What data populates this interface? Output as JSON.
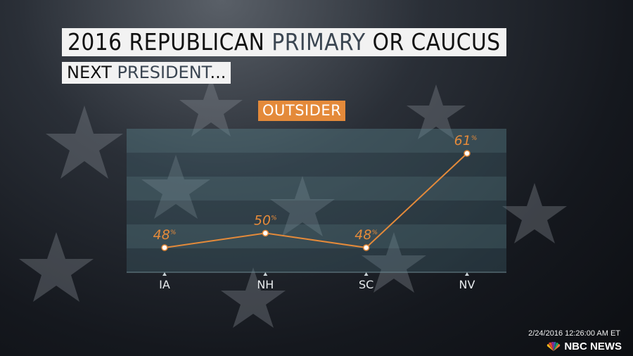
{
  "header": {
    "title_prefix": "2016 REPUBLICAN ",
    "title_highlight": "PRIMARY",
    "title_suffix": " OR CAUCUS",
    "subtitle_prefix": "NEXT ",
    "subtitle_highlight": "PRESIDENT",
    "subtitle_suffix": "..."
  },
  "badge": {
    "label": "OUTSIDER",
    "color": "#e48a3a"
  },
  "footer": {
    "timestamp": "2/24/2016 12:26:00 AM ET",
    "logo_text": "NBC NEWS"
  },
  "chart_data": {
    "type": "line",
    "categories": [
      "IA",
      "NH",
      "SC",
      "NV"
    ],
    "series": [
      {
        "values": [
          48,
          50,
          48,
          61
        ]
      }
    ],
    "value_suffix": "%",
    "line_color": "#e48a3a",
    "grid": true
  }
}
